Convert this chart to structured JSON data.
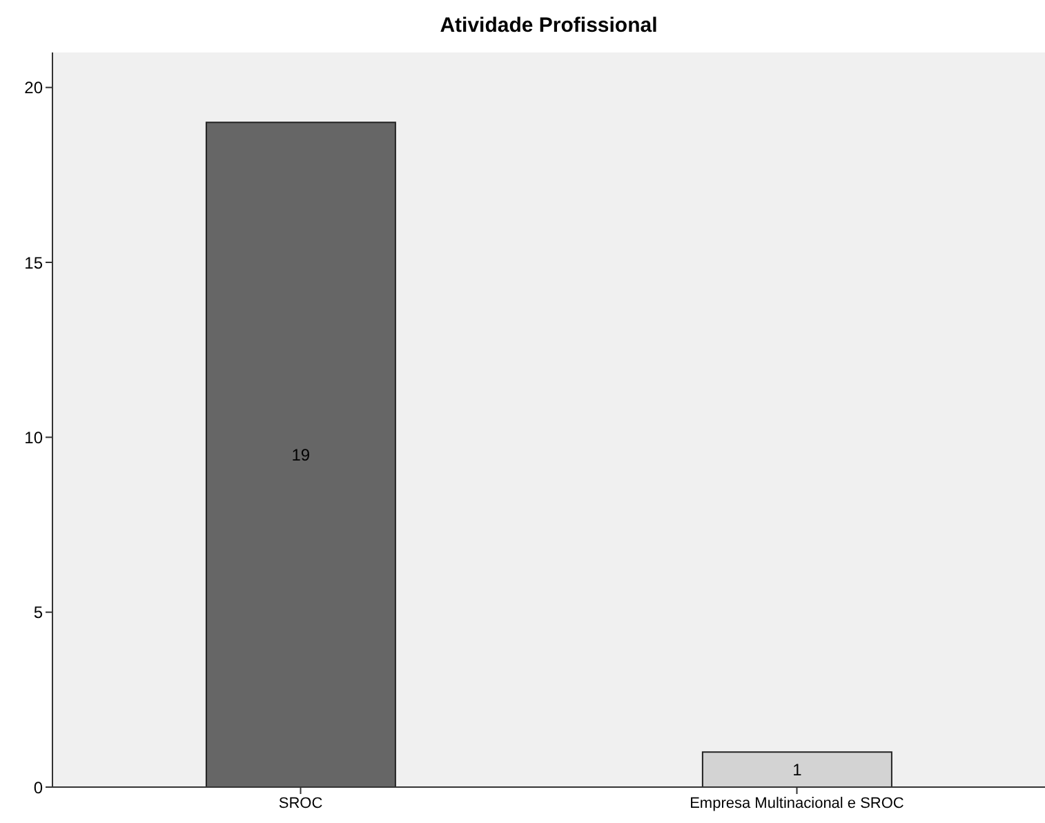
{
  "chart_data": {
    "type": "bar",
    "title": "Atividade Profissional",
    "categories": [
      "SROC",
      "Empresa Multinacional e SROC"
    ],
    "values": [
      19,
      1
    ],
    "colors": [
      "#666666",
      "#d3d3d3"
    ],
    "ylim": [
      0,
      21
    ],
    "yticks": [
      0,
      5,
      10,
      15,
      20
    ],
    "data_labels": true,
    "grid": false,
    "legend": false
  }
}
